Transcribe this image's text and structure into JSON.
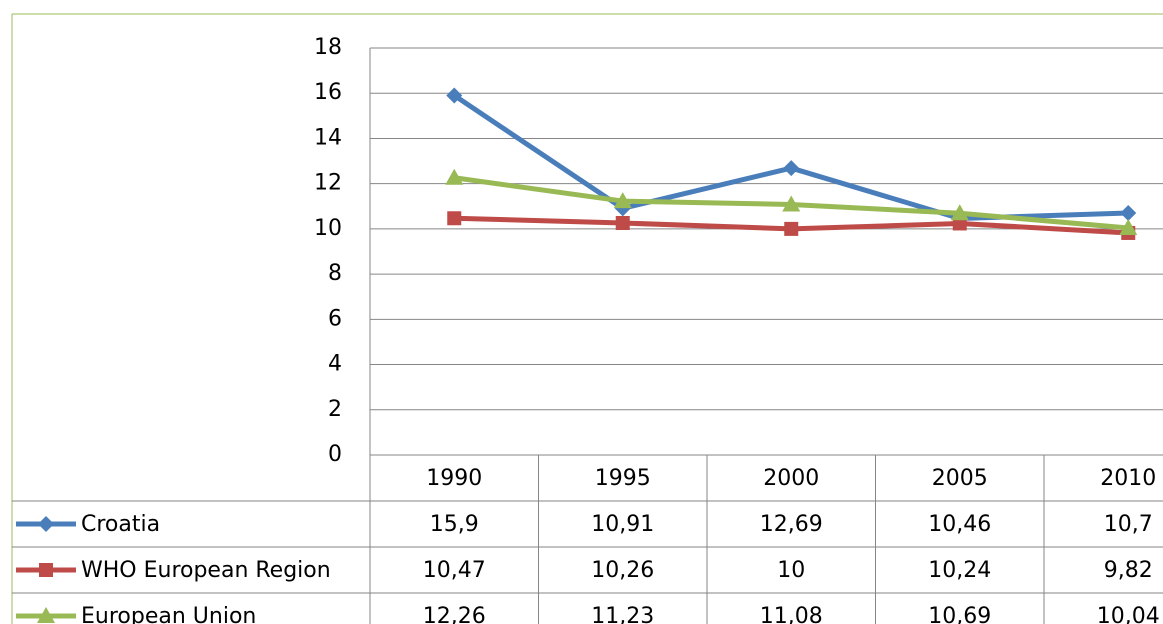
{
  "chart_data": {
    "type": "line",
    "categories": [
      "1990",
      "1995",
      "2000",
      "2005",
      "2010"
    ],
    "series": [
      {
        "name": "Croatia",
        "color": "#4a7ebb",
        "marker": "diamond",
        "values": [
          15.9,
          10.91,
          12.69,
          10.46,
          10.7
        ],
        "value_labels": [
          "15,9",
          "10,91",
          "12,69",
          "10,46",
          "10,7"
        ]
      },
      {
        "name": "WHO European Region",
        "color": "#be4b48",
        "marker": "square",
        "values": [
          10.47,
          10.26,
          10,
          10.24,
          9.82
        ],
        "value_labels": [
          "10,47",
          "10,26",
          "10",
          "10,24",
          "9,82"
        ]
      },
      {
        "name": "European Union",
        "color": "#98b954",
        "marker": "triangle",
        "values": [
          12.26,
          11.23,
          11.08,
          10.69,
          10.04
        ],
        "value_labels": [
          "12,26",
          "11,23",
          "11,08",
          "10,69",
          "10,04"
        ]
      }
    ],
    "ylim": [
      0,
      18
    ],
    "yticks": [
      0,
      2,
      4,
      6,
      8,
      10,
      12,
      14,
      16,
      18
    ],
    "grid": true,
    "data_table": true
  }
}
